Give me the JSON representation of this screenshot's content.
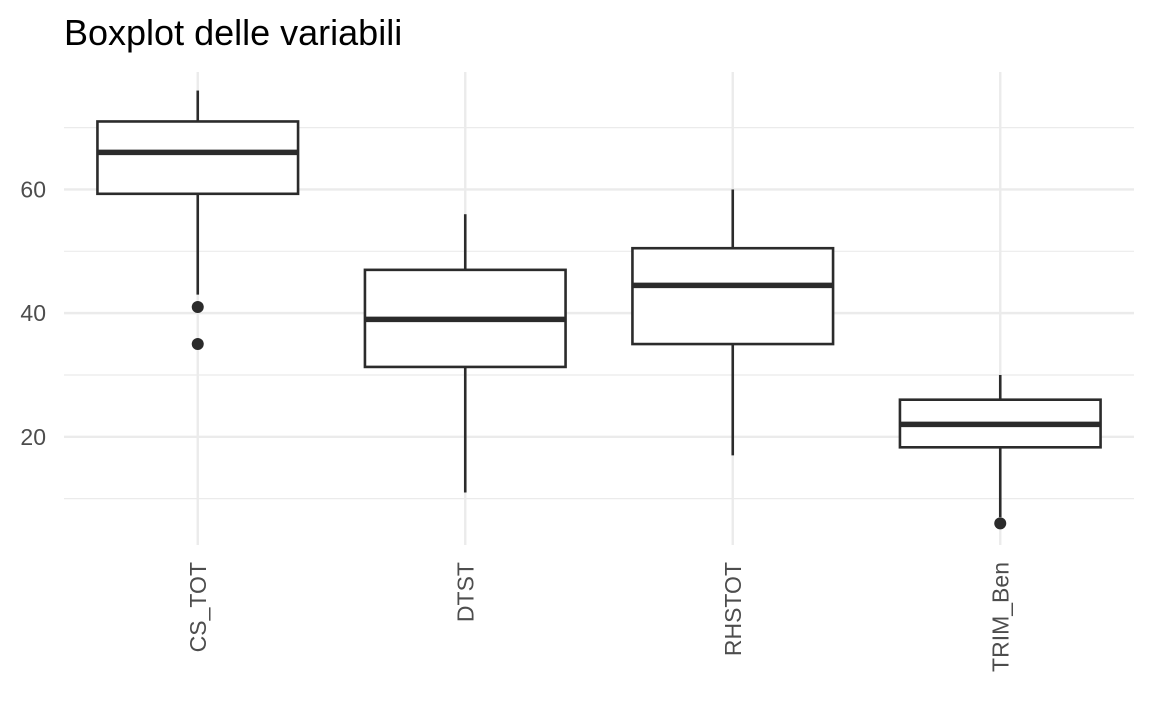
{
  "chart_data": {
    "type": "boxplot",
    "title": "Boxplot delle variabili",
    "xlabel": "",
    "ylabel": "",
    "ylim": [
      2.5,
      79
    ],
    "yticks": [
      20,
      40,
      60
    ],
    "grid": true,
    "categories": [
      "CS_TOT",
      "DTST",
      "RHSTOT",
      "TRIM_Ben"
    ],
    "boxes": [
      {
        "label": "CS_TOT",
        "whisker_low": 43,
        "q1": 59.3,
        "median": 66,
        "q3": 71,
        "whisker_high": 76,
        "outliers": [
          41,
          35
        ]
      },
      {
        "label": "DTST",
        "whisker_low": 11,
        "q1": 31.3,
        "median": 39,
        "q3": 47,
        "whisker_high": 56,
        "outliers": []
      },
      {
        "label": "RHSTOT",
        "whisker_low": 17,
        "q1": 35,
        "median": 44.5,
        "q3": 50.5,
        "whisker_high": 60,
        "outliers": []
      },
      {
        "label": "TRIM_Ben",
        "whisker_low": 7,
        "q1": 18.3,
        "median": 22,
        "q3": 26,
        "whisker_high": 30,
        "outliers": [
          6
        ]
      }
    ],
    "colors": {
      "box_line": "#2b2b2b",
      "box_fill": "#ffffff",
      "grid": "#ebebeb",
      "text": "#4d4d4d",
      "title": "#000000"
    }
  }
}
